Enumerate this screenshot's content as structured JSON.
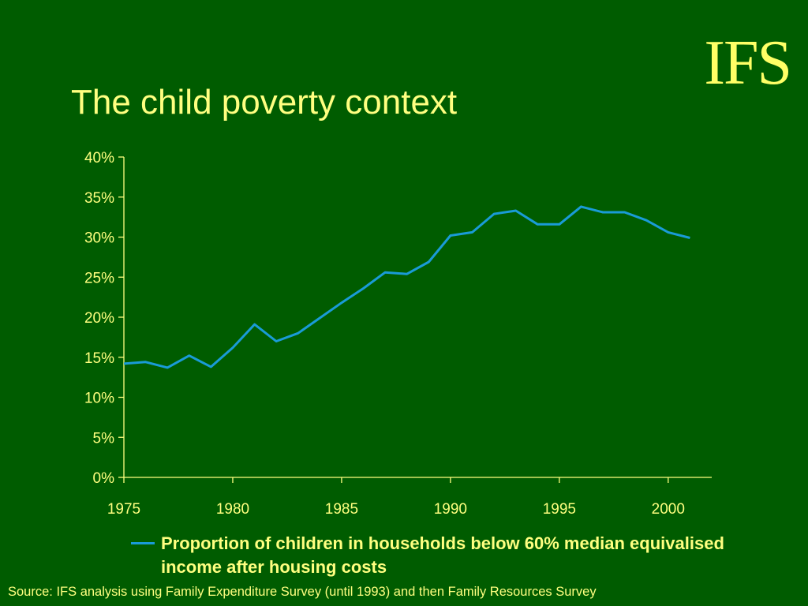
{
  "logo": "IFS",
  "title": "The child poverty context",
  "source": "Source: IFS analysis using Family Expenditure Survey (until 1993) and then Family Resources Survey",
  "colors": {
    "background": "#005c00",
    "text": "#ffff80",
    "line": "#1a9bd7"
  },
  "chart_data": {
    "type": "line",
    "title": "",
    "xlabel": "",
    "ylabel": "",
    "x": [
      1975,
      1976,
      1977,
      1978,
      1979,
      1980,
      1981,
      1982,
      1983,
      1984,
      1985,
      1986,
      1987,
      1988,
      1989,
      1990,
      1991,
      1992,
      1993,
      1994,
      1995,
      1996,
      1997,
      1998,
      1999,
      2000,
      2001
    ],
    "series": [
      {
        "name": "Proportion of children in households below 60% median equivalised income after housing costs",
        "values": [
          14.2,
          14.4,
          13.7,
          15.2,
          13.8,
          16.2,
          19.1,
          17.0,
          18.0,
          19.9,
          21.8,
          23.6,
          25.6,
          25.4,
          26.9,
          30.2,
          30.6,
          32.9,
          33.3,
          31.6,
          31.6,
          33.8,
          33.1,
          33.1,
          32.1,
          30.6,
          29.9
        ]
      }
    ],
    "ylim": [
      0,
      40
    ],
    "yticks": [
      "0%",
      "5%",
      "10%",
      "15%",
      "20%",
      "25%",
      "30%",
      "35%",
      "40%"
    ],
    "xlim": [
      1975,
      2002
    ],
    "xticks": [
      "1975",
      "1980",
      "1985",
      "1990",
      "1995",
      "2000"
    ],
    "grid": false,
    "legend_position": "bottom"
  }
}
